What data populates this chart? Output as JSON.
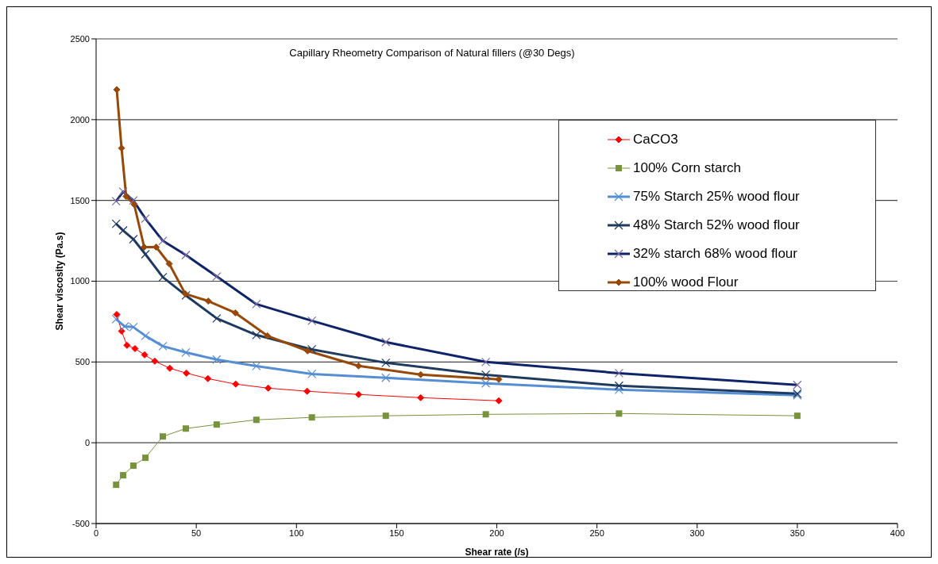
{
  "chart_data": {
    "type": "line",
    "title": "Capillary Rheometry Comparison of Natural fillers (@30 Degs)",
    "xlabel": "Shear rate (/s)",
    "ylabel": "Shear viscosity  (Pa.s)",
    "xlim": [
      0,
      400
    ],
    "xticks": [
      0,
      50,
      100,
      150,
      200,
      250,
      300,
      350,
      400
    ],
    "ylim": [
      -500,
      2500
    ],
    "yticks": [
      -500,
      0,
      500,
      1000,
      1500,
      2000,
      2500
    ],
    "grid": "y",
    "legend": "top right",
    "series": [
      {
        "name": "CaCO3",
        "color": "#ff0000",
        "marker": "diamond",
        "x": [
          10.3,
          12.7,
          15.4,
          19.4,
          24.2,
          29.3,
          36.8,
          45.1,
          55.8,
          69.7,
          85.9,
          105.3,
          131,
          162,
          201
        ],
        "values": [
          794,
          691,
          603,
          583,
          544,
          505,
          461,
          431,
          397,
          363,
          338,
          319,
          299,
          279,
          260
        ]
      },
      {
        "name": "100% Corn starch",
        "color": "#77933c",
        "marker": "square",
        "x": [
          10,
          13.5,
          18.6,
          24.6,
          33.3,
          44.8,
          60.2,
          80,
          107.7,
          144.6,
          194.5,
          261,
          350
        ],
        "values": [
          -260,
          -201,
          -142,
          -93,
          39,
          88,
          113,
          142,
          157,
          167,
          176,
          181,
          167
        ]
      },
      {
        "name": "75% Starch 25% wood flour",
        "color": "#558ed5",
        "marker": "cross",
        "x": [
          10,
          14.3,
          18.6,
          24.6,
          33.3,
          44.8,
          60.2,
          80,
          107.7,
          144.6,
          194.5,
          261,
          350
        ],
        "values": [
          765,
          720,
          716,
          662,
          598,
          559,
          515,
          475,
          426,
          402,
          368,
          328,
          294
        ]
      },
      {
        "name": "48% Starch 52% wood flour",
        "color": "#1f3a5f",
        "marker": "cross",
        "x": [
          10,
          13.5,
          18.6,
          24.6,
          33.3,
          44.8,
          60.2,
          80,
          107.7,
          144.6,
          194.5,
          261,
          350
        ],
        "values": [
          1355,
          1314,
          1260,
          1167,
          1025,
          912,
          770,
          667,
          578,
          495,
          421,
          353,
          304
        ]
      },
      {
        "name": "32% starch 68% wood flour",
        "color": "#0f2468",
        "marker": "cross",
        "x": [
          10,
          13.5,
          18.6,
          24.6,
          33.3,
          44.8,
          60.2,
          80,
          107.7,
          144.6,
          194.5,
          261,
          350
        ],
        "values": [
          1495,
          1554,
          1500,
          1387,
          1250,
          1162,
          1029,
          858,
          755,
          623,
          500,
          431,
          358
        ]
      },
      {
        "name": "100% wood Flour",
        "color": "#984807",
        "marker": "diamond",
        "x": [
          10.3,
          12.7,
          15,
          19,
          24,
          30,
          36.5,
          44.5,
          56,
          69.5,
          85.5,
          105.5,
          131,
          162,
          201
        ],
        "values": [
          2186,
          1824,
          1525,
          1475,
          1211,
          1211,
          1108,
          922,
          877,
          804,
          662,
          569,
          476,
          422,
          392
        ]
      }
    ]
  }
}
